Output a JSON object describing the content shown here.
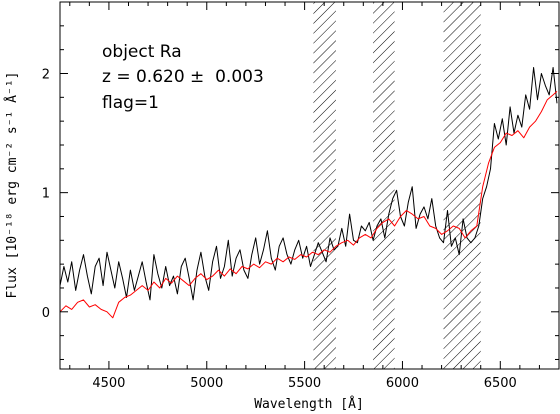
{
  "chart_data": {
    "type": "line",
    "xlabel": "Wavelength [Å]",
    "ylabel": "Flux [10⁻¹⁸ erg cm⁻² s⁻¹ Å⁻¹]",
    "xlim": [
      4250,
      6800
    ],
    "ylim": [
      -0.48,
      2.6
    ],
    "x_ticks": [
      4500,
      5000,
      5500,
      6000,
      6500
    ],
    "y_ticks": [
      0,
      1,
      2
    ],
    "x_tick_labels": [
      "4500",
      "5000",
      "5500",
      "6000",
      "6500"
    ],
    "y_tick_labels": [
      "0",
      "1",
      "2"
    ],
    "annotations": [
      "object Ra",
      "z = 0.620 ±  0.003",
      "flag=1"
    ],
    "masked_regions": [
      [
        5545,
        5660
      ],
      [
        5850,
        5960
      ],
      [
        6210,
        6400
      ]
    ],
    "series": [
      {
        "color": "#000000",
        "x": [
          4250,
          4270,
          4290,
          4310,
          4330,
          4350,
          4370,
          4390,
          4410,
          4430,
          4450,
          4470,
          4490,
          4510,
          4530,
          4550,
          4570,
          4590,
          4610,
          4630,
          4650,
          4670,
          4690,
          4710,
          4730,
          4750,
          4770,
          4790,
          4810,
          4830,
          4850,
          4870,
          4890,
          4910,
          4930,
          4950,
          4970,
          4990,
          5010,
          5030,
          5050,
          5070,
          5090,
          5110,
          5130,
          5150,
          5170,
          5190,
          5210,
          5230,
          5250,
          5270,
          5290,
          5310,
          5330,
          5350,
          5370,
          5390,
          5410,
          5430,
          5450,
          5470,
          5490,
          5510,
          5530,
          5550,
          5570,
          5590,
          5610,
          5630,
          5650,
          5670,
          5690,
          5710,
          5730,
          5750,
          5770,
          5790,
          5810,
          5830,
          5850,
          5870,
          5890,
          5910,
          5930,
          5950,
          5970,
          5990,
          6010,
          6030,
          6050,
          6070,
          6090,
          6110,
          6130,
          6150,
          6170,
          6190,
          6210,
          6230,
          6250,
          6270,
          6290,
          6310,
          6330,
          6350,
          6370,
          6390,
          6410,
          6430,
          6450,
          6470,
          6490,
          6510,
          6530,
          6550,
          6570,
          6590,
          6610,
          6630,
          6650,
          6670,
          6690,
          6710,
          6730,
          6750,
          6770,
          6790
        ],
        "values": [
          0.22,
          0.38,
          0.25,
          0.42,
          0.18,
          0.35,
          0.48,
          0.3,
          0.15,
          0.38,
          0.45,
          0.22,
          0.5,
          0.35,
          0.2,
          0.42,
          0.28,
          0.12,
          0.35,
          0.18,
          0.3,
          0.42,
          0.25,
          0.1,
          0.48,
          0.32,
          0.2,
          0.38,
          0.22,
          0.3,
          0.15,
          0.38,
          0.45,
          0.28,
          0.1,
          0.35,
          0.5,
          0.3,
          0.18,
          0.42,
          0.55,
          0.28,
          0.38,
          0.6,
          0.3,
          0.45,
          0.52,
          0.35,
          0.28,
          0.48,
          0.62,
          0.4,
          0.52,
          0.68,
          0.45,
          0.35,
          0.55,
          0.62,
          0.48,
          0.4,
          0.52,
          0.6,
          0.45,
          0.55,
          0.38,
          0.48,
          0.58,
          0.5,
          0.42,
          0.62,
          0.52,
          0.55,
          0.7,
          0.55,
          0.82,
          0.6,
          0.58,
          0.72,
          0.68,
          0.75,
          0.6,
          0.72,
          0.78,
          0.62,
          0.82,
          0.95,
          1.02,
          0.8,
          0.72,
          0.92,
          1.05,
          0.7,
          0.82,
          0.88,
          0.78,
          0.95,
          0.72,
          0.62,
          0.58,
          0.85,
          0.55,
          0.62,
          0.48,
          0.78,
          0.62,
          0.58,
          0.62,
          0.72,
          0.95,
          1.05,
          1.2,
          1.58,
          1.45,
          1.62,
          1.4,
          1.72,
          1.5,
          1.65,
          1.55,
          1.82,
          1.7,
          2.05,
          1.78,
          2.0,
          1.9,
          1.82,
          2.05,
          1.75
        ]
      },
      {
        "color": "#ff0000",
        "x": [
          4250,
          4280,
          4310,
          4340,
          4370,
          4400,
          4430,
          4460,
          4490,
          4520,
          4550,
          4580,
          4610,
          4640,
          4670,
          4700,
          4730,
          4760,
          4790,
          4820,
          4850,
          4880,
          4910,
          4940,
          4970,
          5000,
          5030,
          5060,
          5090,
          5120,
          5150,
          5180,
          5210,
          5240,
          5270,
          5300,
          5330,
          5360,
          5390,
          5420,
          5450,
          5480,
          5510,
          5540,
          5570,
          5600,
          5630,
          5660,
          5690,
          5720,
          5750,
          5780,
          5810,
          5840,
          5870,
          5900,
          5930,
          5960,
          5990,
          6020,
          6050,
          6080,
          6110,
          6140,
          6170,
          6200,
          6230,
          6260,
          6290,
          6320,
          6350,
          6380,
          6410,
          6440,
          6470,
          6500,
          6530,
          6560,
          6590,
          6620,
          6650,
          6680,
          6710,
          6740,
          6770,
          6790
        ],
        "values": [
          0.0,
          0.05,
          0.02,
          0.08,
          0.1,
          0.04,
          0.06,
          0.02,
          0.0,
          -0.05,
          0.08,
          0.12,
          0.14,
          0.18,
          0.22,
          0.18,
          0.25,
          0.2,
          0.28,
          0.24,
          0.3,
          0.26,
          0.22,
          0.28,
          0.32,
          0.27,
          0.3,
          0.35,
          0.3,
          0.36,
          0.32,
          0.38,
          0.36,
          0.4,
          0.37,
          0.42,
          0.4,
          0.45,
          0.42,
          0.46,
          0.44,
          0.48,
          0.46,
          0.5,
          0.48,
          0.52,
          0.5,
          0.55,
          0.58,
          0.6,
          0.56,
          0.62,
          0.65,
          0.62,
          0.7,
          0.75,
          0.78,
          0.72,
          0.8,
          0.85,
          0.82,
          0.78,
          0.8,
          0.72,
          0.7,
          0.65,
          0.68,
          0.72,
          0.7,
          0.62,
          0.68,
          0.72,
          1.05,
          1.25,
          1.38,
          1.42,
          1.5,
          1.48,
          1.52,
          1.46,
          1.55,
          1.6,
          1.68,
          1.78,
          1.82,
          1.85
        ]
      }
    ]
  }
}
